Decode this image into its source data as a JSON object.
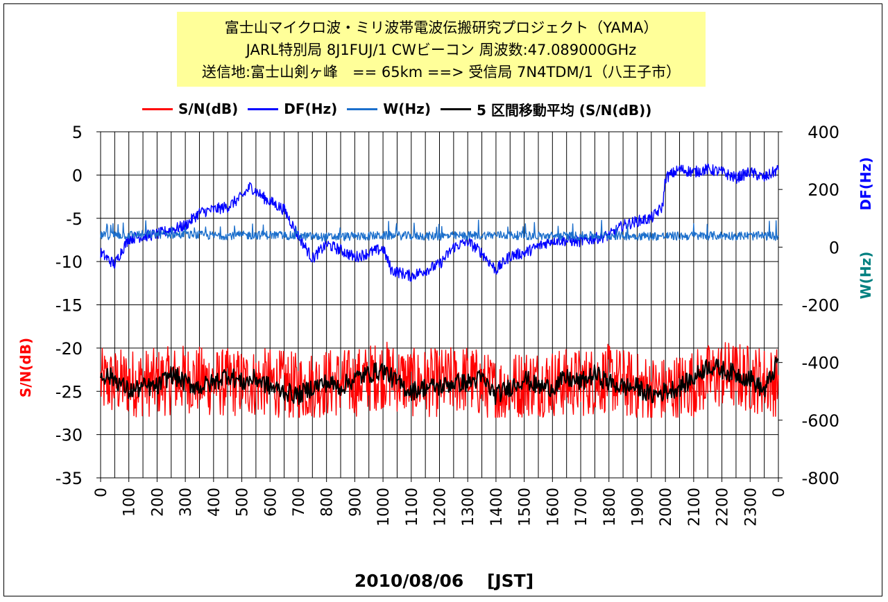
{
  "title": {
    "line1": "富士山マイクロ波・ミリ波帯電波伝搬研究プロジェクト（YAMA）",
    "line2": "JARL特別局 8J1FUJ/1 CWビーコン 周波数:47.089000GHz",
    "line3": "送信地:富士山剣ヶ峰　== 65km ==> 受信局 7N4TDM/1（八王子市）"
  },
  "legend": [
    {
      "label": "S/N(dB)",
      "color": "#ff0000"
    },
    {
      "label": "DF(Hz)",
      "color": "#0000ff"
    },
    {
      "label": "W(Hz)",
      "color": "#1c6fcc"
    },
    {
      "label": "5 区間移動平均 (S/N(dB))",
      "color": "#000000"
    }
  ],
  "axes": {
    "y_left_title": "S/N(dB)",
    "y_right_title_1": "DF(Hz)",
    "y_right_title_2": "W(Hz)",
    "x_title": "2010/08/06　 [JST]",
    "y_left_ticks": [
      "5",
      "0",
      "-5",
      "-10",
      "-15",
      "-20",
      "-25",
      "-30",
      "-35"
    ],
    "y_right_ticks": [
      "400",
      "200",
      "0",
      "-200",
      "-400",
      "-600",
      "-800"
    ],
    "x_ticks": [
      "0",
      "100",
      "200",
      "300",
      "400",
      "500",
      "600",
      "700",
      "800",
      "900",
      "1000",
      "1100",
      "1200",
      "1300",
      "1400",
      "1500",
      "1600",
      "1700",
      "1800",
      "1900",
      "2000",
      "2100",
      "2200",
      "2300",
      "0"
    ]
  },
  "chart_data": {
    "type": "line",
    "x_unit": "time of day (hhmm, JST)",
    "x_range": [
      0,
      2400
    ],
    "y_left_range": [
      -35,
      5
    ],
    "y_right_range": [
      -800,
      400
    ],
    "grid": true,
    "series": [
      {
        "name": "S/N(dB)",
        "axis": "left",
        "color": "#ff0000",
        "points": [
          [
            0,
            -24
          ],
          [
            100,
            -24
          ],
          [
            200,
            -24
          ],
          [
            300,
            -23.5
          ],
          [
            400,
            -24
          ],
          [
            500,
            -24
          ],
          [
            600,
            -24
          ],
          [
            700,
            -24.5
          ],
          [
            800,
            -24
          ],
          [
            900,
            -24
          ],
          [
            1000,
            -23
          ],
          [
            1100,
            -24
          ],
          [
            1200,
            -24
          ],
          [
            1300,
            -23.5
          ],
          [
            1400,
            -25
          ],
          [
            1500,
            -24
          ],
          [
            1600,
            -24
          ],
          [
            1700,
            -24
          ],
          [
            1800,
            -23.5
          ],
          [
            1900,
            -24.5
          ],
          [
            2000,
            -25
          ],
          [
            2100,
            -24
          ],
          [
            2200,
            -23
          ],
          [
            2300,
            -23.5
          ],
          [
            2400,
            -24
          ]
        ],
        "band_min": -28,
        "band_max": -19
      },
      {
        "name": "DF(Hz)",
        "axis": "right",
        "color": "#0000ff",
        "points": [
          [
            0,
            -20
          ],
          [
            50,
            -60
          ],
          [
            70,
            -20
          ],
          [
            100,
            30
          ],
          [
            200,
            45
          ],
          [
            300,
            75
          ],
          [
            350,
            120
          ],
          [
            400,
            130
          ],
          [
            450,
            140
          ],
          [
            500,
            175
          ],
          [
            530,
            210
          ],
          [
            580,
            170
          ],
          [
            650,
            130
          ],
          [
            700,
            40
          ],
          [
            750,
            -40
          ],
          [
            800,
            10
          ],
          [
            850,
            -10
          ],
          [
            900,
            -35
          ],
          [
            1000,
            -5
          ],
          [
            1030,
            -80
          ],
          [
            1100,
            -100
          ],
          [
            1200,
            -60
          ],
          [
            1250,
            0
          ],
          [
            1300,
            20
          ],
          [
            1350,
            -20
          ],
          [
            1400,
            -80
          ],
          [
            1450,
            -30
          ],
          [
            1500,
            -20
          ],
          [
            1600,
            25
          ],
          [
            1700,
            20
          ],
          [
            1800,
            40
          ],
          [
            1850,
            75
          ],
          [
            1900,
            90
          ],
          [
            1950,
            100
          ],
          [
            1990,
            140
          ],
          [
            2000,
            240
          ],
          [
            2050,
            270
          ],
          [
            2100,
            260
          ],
          [
            2150,
            270
          ],
          [
            2200,
            260
          ],
          [
            2250,
            240
          ],
          [
            2300,
            260
          ],
          [
            2350,
            240
          ],
          [
            2400,
            270
          ]
        ]
      },
      {
        "name": "W(Hz)",
        "axis": "right",
        "color": "#1c6fcc",
        "points": [
          [
            0,
            40
          ],
          [
            200,
            45
          ],
          [
            400,
            40
          ],
          [
            600,
            42
          ],
          [
            800,
            35
          ],
          [
            1000,
            40
          ],
          [
            1200,
            38
          ],
          [
            1400,
            42
          ],
          [
            1600,
            38
          ],
          [
            1800,
            40
          ],
          [
            2000,
            38
          ],
          [
            2200,
            40
          ],
          [
            2400,
            38
          ]
        ]
      },
      {
        "name": "5 区間移動平均 (S/N(dB))",
        "axis": "left",
        "color": "#000000",
        "points": [
          [
            0,
            -23
          ],
          [
            50,
            -23.5
          ],
          [
            100,
            -25
          ],
          [
            150,
            -24.5
          ],
          [
            200,
            -24.5
          ],
          [
            250,
            -23
          ],
          [
            300,
            -24
          ],
          [
            350,
            -24.5
          ],
          [
            400,
            -24
          ],
          [
            450,
            -23
          ],
          [
            500,
            -24
          ],
          [
            550,
            -23.5
          ],
          [
            600,
            -24.5
          ],
          [
            650,
            -25
          ],
          [
            700,
            -25.5
          ],
          [
            750,
            -24.5
          ],
          [
            800,
            -24
          ],
          [
            850,
            -24.5
          ],
          [
            900,
            -23.5
          ],
          [
            950,
            -23
          ],
          [
            1000,
            -22.5
          ],
          [
            1050,
            -24
          ],
          [
            1100,
            -25
          ],
          [
            1150,
            -24.5
          ],
          [
            1200,
            -24.5
          ],
          [
            1250,
            -24
          ],
          [
            1300,
            -24
          ],
          [
            1350,
            -23.5
          ],
          [
            1400,
            -25.5
          ],
          [
            1450,
            -24.5
          ],
          [
            1500,
            -23.5
          ],
          [
            1550,
            -24.5
          ],
          [
            1600,
            -24.5
          ],
          [
            1650,
            -23.5
          ],
          [
            1700,
            -24
          ],
          [
            1750,
            -23
          ],
          [
            1800,
            -24
          ],
          [
            1850,
            -24.5
          ],
          [
            1900,
            -24.5
          ],
          [
            1950,
            -25.5
          ],
          [
            2000,
            -25
          ],
          [
            2050,
            -24.5
          ],
          [
            2100,
            -23.5
          ],
          [
            2150,
            -22
          ],
          [
            2200,
            -22.5
          ],
          [
            2250,
            -23
          ],
          [
            2300,
            -23.5
          ],
          [
            2350,
            -25
          ],
          [
            2400,
            -21.5
          ]
        ]
      }
    ]
  }
}
